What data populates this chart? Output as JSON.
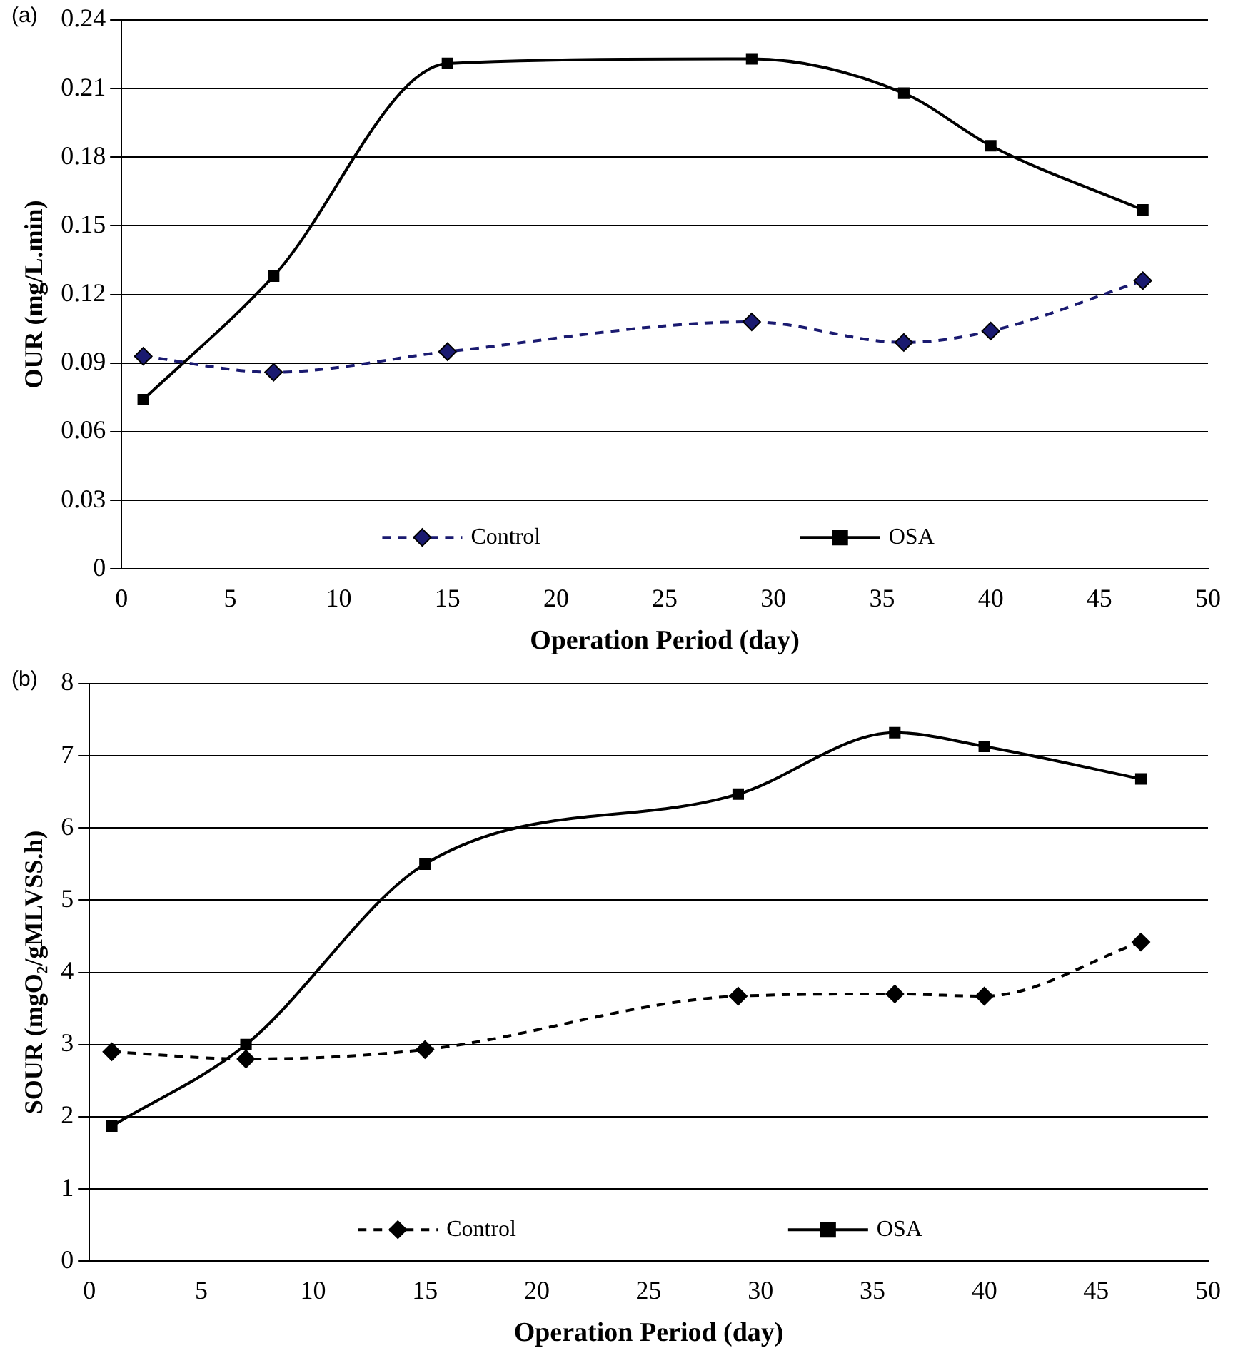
{
  "chart_data": [
    {
      "type": "line",
      "title": "(a)",
      "xlabel": "Operation Period (day)",
      "ylabel": "OUR (mg/L.min)",
      "x": [
        1,
        7,
        15,
        29,
        36,
        40,
        47
      ],
      "series": [
        {
          "name": "Control",
          "color": "#1a1a70",
          "marker": "diamond",
          "line_style": "dashed",
          "values": [
            0.093,
            0.086,
            0.095,
            0.108,
            0.099,
            0.104,
            0.126
          ]
        },
        {
          "name": "OSA",
          "color": "#000000",
          "marker": "square",
          "line_style": "solid",
          "values": [
            0.074,
            0.128,
            0.221,
            0.223,
            0.208,
            0.185,
            0.157
          ]
        }
      ],
      "xlim": [
        0,
        50
      ],
      "xticks": [
        0,
        5,
        10,
        15,
        20,
        25,
        30,
        35,
        40,
        45,
        50
      ],
      "ylim": [
        0,
        0.24
      ],
      "yticks": [
        0,
        0.03,
        0.06,
        0.09,
        0.12,
        0.15,
        0.18,
        0.21,
        0.24
      ],
      "grid": "y",
      "legend": "bottom"
    },
    {
      "type": "line",
      "title": "(b)",
      "xlabel": "Operation Period (day)",
      "ylabel": "SOUR (mgO₂/gMLVSS.h)",
      "x": [
        1,
        7,
        15,
        29,
        36,
        40,
        47
      ],
      "series": [
        {
          "name": "Control",
          "color": "#000000",
          "marker": "diamond",
          "line_style": "dashed",
          "values": [
            2.9,
            2.8,
            2.93,
            3.67,
            3.7,
            3.67,
            4.42
          ]
        },
        {
          "name": "OSA",
          "color": "#000000",
          "marker": "square",
          "line_style": "solid",
          "values": [
            1.87,
            3.0,
            5.5,
            6.47,
            7.32,
            7.13,
            6.68
          ]
        }
      ],
      "xlim": [
        0,
        50
      ],
      "xticks": [
        0,
        5,
        10,
        15,
        20,
        25,
        30,
        35,
        40,
        45,
        50
      ],
      "ylim": [
        0,
        8
      ],
      "yticks": [
        0,
        1,
        2,
        3,
        4,
        5,
        6,
        7,
        8
      ],
      "grid": "y",
      "legend": "bottom"
    }
  ]
}
